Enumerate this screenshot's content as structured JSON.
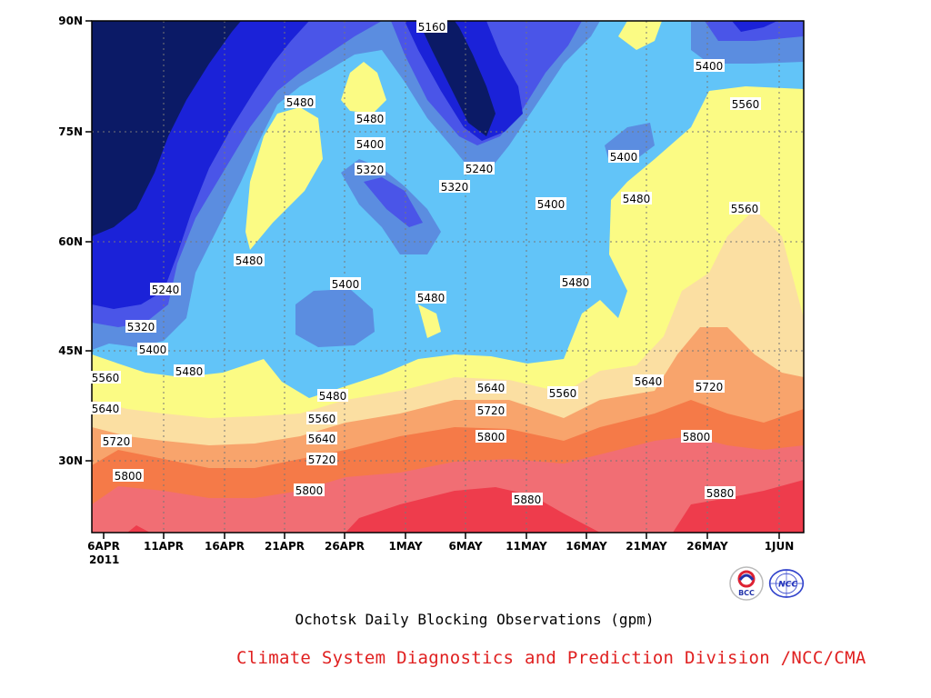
{
  "title": "Ochotsk Daily Blocking Observations (gpm)",
  "credit": "Climate System Diagnostics and Prediction Division /NCC/CMA",
  "logos": [
    {
      "name": "bcc-logo",
      "text": "BCC"
    },
    {
      "name": "ncc-logo",
      "text": "NCC"
    }
  ],
  "colors": {
    "c5160": "#0b1a66",
    "c5240": "#1b22d8",
    "c5320": "#4a55e8",
    "c5400": "#5b8de0",
    "c5480": "#62c4f8",
    "c5560": "#fbfb84",
    "c5640": "#fbdfa2",
    "c5720": "#f8a46c",
    "c5800": "#f57a48",
    "c5880": "#f16e74",
    "c5960": "#ee3c4c"
  },
  "chart_data": {
    "type": "heatmap",
    "title": "Ochotsk Daily Blocking Observations (gpm)",
    "xlabel": "",
    "ylabel": "",
    "x_ticks": [
      "6APR",
      "11APR",
      "16APR",
      "21APR",
      "26APR",
      "1MAY",
      "6MAY",
      "11MAY",
      "16MAY",
      "21MAY",
      "26MAY",
      "1JUN"
    ],
    "x_year": "2011",
    "y_ticks": [
      "30N",
      "45N",
      "60N",
      "75N",
      "90N"
    ],
    "xlim": [
      "2011-04-06",
      "2011-06-04"
    ],
    "ylim": [
      20,
      90
    ],
    "contour_levels": [
      5160,
      5240,
      5320,
      5400,
      5480,
      5560,
      5640,
      5720,
      5800,
      5880
    ],
    "contour_labels": [
      "5160",
      "5240",
      "5320",
      "5400",
      "5480",
      "5560",
      "5640",
      "5720",
      "5800",
      "5880"
    ],
    "grid": true
  }
}
